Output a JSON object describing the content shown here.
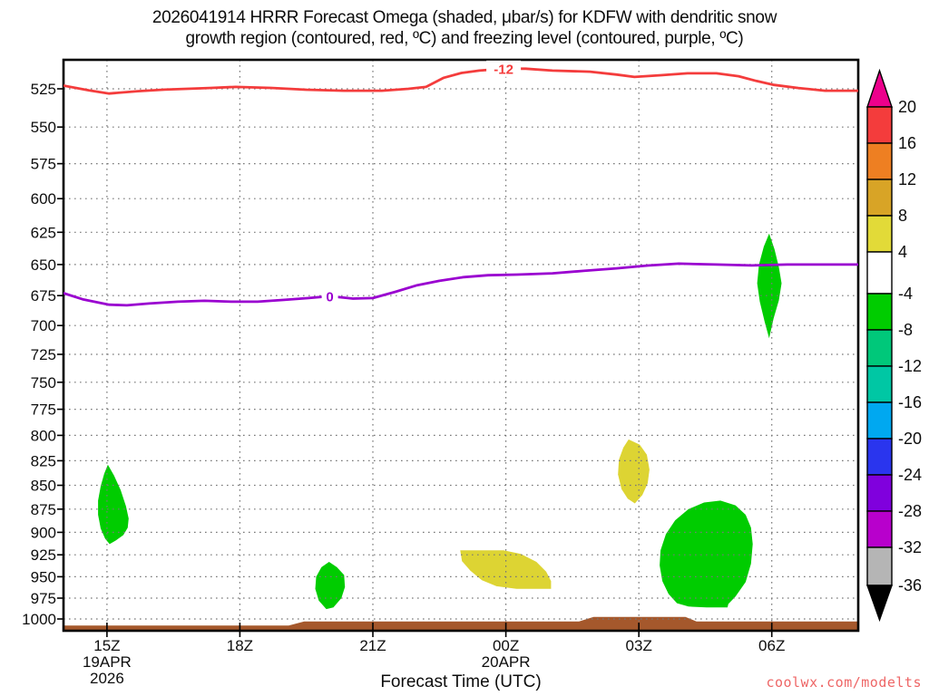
{
  "title": {
    "line1": "2026041914 HRRR Forecast Omega (shaded, μbar/s) for KDFW with dendritic snow",
    "line2": "growth region (contoured, red, ºC) and freezing level (contoured, purple, ºC)"
  },
  "xlabel": "Forecast Time (UTC)",
  "watermark": {
    "text": "coolwx.com/modelts",
    "color": "#ee6666"
  },
  "colors": {
    "green_shade": "#00cc00",
    "yellow_shade": "#ddd433",
    "terrain_brown": "#a5582c",
    "red_contour": "#f43c3c",
    "purple_contour": "#9a00d0",
    "gridline": "#777777",
    "axis": "#000000"
  },
  "chart_data": {
    "type": "filled_contour_time_height_cross_section",
    "model": "HRRR",
    "init": "2026041914",
    "station": "KDFW",
    "shaded_variable": "Omega (μbar/s)",
    "x_axis": {
      "label": "Forecast Time (UTC)",
      "range_hours": [
        14.02,
        31.95
      ],
      "ticks": [
        {
          "label": "15Z",
          "t": 15
        },
        {
          "label": "18Z",
          "t": 18
        },
        {
          "label": "21Z",
          "t": 21
        },
        {
          "label": "00Z",
          "t": 24
        },
        {
          "label": "03Z",
          "t": 27
        },
        {
          "label": "06Z",
          "t": 30
        }
      ],
      "sub_labels": [
        {
          "text": "19APR",
          "t": 15,
          "row": 1
        },
        {
          "text": "2026",
          "t": 15,
          "row": 2
        },
        {
          "text": "20APR",
          "t": 24,
          "row": 1
        }
      ]
    },
    "y_axis": {
      "unit": "hPa",
      "scale": "log",
      "range": [
        507,
        1015
      ],
      "ticks": [
        525,
        550,
        575,
        600,
        625,
        650,
        675,
        700,
        725,
        750,
        775,
        800,
        825,
        850,
        875,
        900,
        925,
        950,
        975,
        1000
      ]
    },
    "colorbar": {
      "over_color": "#ec008c",
      "under_color": "#000000",
      "levels": [
        20,
        16,
        12,
        8,
        4,
        -4,
        -8,
        -12,
        -16,
        -20,
        -24,
        -28,
        -32,
        -36
      ],
      "segment_colors": [
        "#f43c3c",
        "#ee7f22",
        "#d8a426",
        "#e2da38",
        "#ffffff",
        "#00cc00",
        "#00c87a",
        "#00c7a4",
        "#00a8f0",
        "#2a35ee",
        "#8000dd",
        "#b800cc",
        "#b5b5b5"
      ]
    },
    "contours": [
      {
        "name": "dendritic-snow-growth-minus12C",
        "label": "-12",
        "color": "#f43c3c",
        "label_t": 23.95,
        "label_p": 512.3,
        "points": [
          [
            14.02,
            523
          ],
          [
            14.6,
            526
          ],
          [
            15.05,
            528
          ],
          [
            15.7,
            526.5
          ],
          [
            16.3,
            525.5
          ],
          [
            17.3,
            524.5
          ],
          [
            17.9,
            523.8
          ],
          [
            18.7,
            524.4
          ],
          [
            19.5,
            525.6
          ],
          [
            20.35,
            526.2
          ],
          [
            21.2,
            526.2
          ],
          [
            21.8,
            525
          ],
          [
            22.2,
            523.8
          ],
          [
            22.6,
            518
          ],
          [
            23.0,
            515
          ],
          [
            23.4,
            513.5
          ],
          [
            23.95,
            512.3
          ],
          [
            24.45,
            512.3
          ],
          [
            25.05,
            513.5
          ],
          [
            25.9,
            514.2
          ],
          [
            26.5,
            516
          ],
          [
            26.9,
            517.5
          ],
          [
            27.5,
            516.4
          ],
          [
            28.1,
            515.2
          ],
          [
            28.75,
            515.2
          ],
          [
            29.25,
            517
          ],
          [
            29.65,
            520
          ],
          [
            30.05,
            522.5
          ],
          [
            30.6,
            524.5
          ],
          [
            31.2,
            526.2
          ],
          [
            31.95,
            526.2
          ]
        ]
      },
      {
        "name": "freezing-level-0C",
        "label": "0",
        "color": "#9a00d0",
        "label_t": 20.03,
        "label_p": 675.5,
        "points": [
          [
            14.02,
            673
          ],
          [
            14.45,
            678
          ],
          [
            15.05,
            682.5
          ],
          [
            15.45,
            683
          ],
          [
            15.95,
            681.5
          ],
          [
            16.6,
            680
          ],
          [
            17.2,
            679.3
          ],
          [
            17.8,
            680
          ],
          [
            18.4,
            680
          ],
          [
            19.0,
            678.5
          ],
          [
            19.55,
            677
          ],
          [
            20.03,
            675.5
          ],
          [
            20.55,
            677.5
          ],
          [
            21.0,
            677
          ],
          [
            21.5,
            672
          ],
          [
            22.0,
            666.5
          ],
          [
            22.5,
            663
          ],
          [
            23.05,
            660
          ],
          [
            23.6,
            658.5
          ],
          [
            24.25,
            658
          ],
          [
            25.05,
            657
          ],
          [
            25.75,
            655
          ],
          [
            26.5,
            653
          ],
          [
            27.2,
            650.8
          ],
          [
            27.9,
            649.3
          ],
          [
            28.75,
            650
          ],
          [
            29.55,
            650.7
          ],
          [
            30.35,
            650
          ],
          [
            31.2,
            650
          ],
          [
            31.95,
            650
          ]
        ]
      }
    ],
    "shaded_regions": [
      {
        "value_range": "-8 to -4 μbar/s",
        "color_key": "green_shade",
        "points": [
          [
            15.02,
            829
          ],
          [
            15.16,
            840
          ],
          [
            15.31,
            855
          ],
          [
            15.43,
            872
          ],
          [
            15.49,
            885
          ],
          [
            15.47,
            895
          ],
          [
            15.37,
            903
          ],
          [
            15.2,
            909
          ],
          [
            15.06,
            913
          ],
          [
            14.96,
            907
          ],
          [
            14.86,
            896
          ],
          [
            14.8,
            881
          ],
          [
            14.8,
            866
          ],
          [
            14.86,
            851
          ],
          [
            14.94,
            838
          ]
        ]
      },
      {
        "value_range": "-8 to -4 μbar/s",
        "color_key": "green_shade",
        "points": [
          [
            20.01,
            933
          ],
          [
            20.19,
            939
          ],
          [
            20.35,
            948
          ],
          [
            20.37,
            962
          ],
          [
            20.29,
            975
          ],
          [
            20.11,
            986
          ],
          [
            19.95,
            988
          ],
          [
            19.78,
            978
          ],
          [
            19.7,
            964
          ],
          [
            19.72,
            950
          ],
          [
            19.84,
            939
          ]
        ]
      },
      {
        "value_range": "4 to 8 μbar/s",
        "color_key": "yellow_shade",
        "points": [
          [
            22.97,
            920
          ],
          [
            23.95,
            920
          ],
          [
            24.34,
            924
          ],
          [
            24.69,
            933
          ],
          [
            24.91,
            944
          ],
          [
            25.02,
            955
          ],
          [
            25.02,
            964
          ],
          [
            24.24,
            964
          ],
          [
            23.79,
            961
          ],
          [
            23.46,
            954
          ],
          [
            23.2,
            943
          ],
          [
            23.01,
            932
          ]
        ]
      },
      {
        "value_range": "4 to 8 μbar/s",
        "color_key": "yellow_shade",
        "points": [
          [
            26.77,
            804
          ],
          [
            27.02,
            809
          ],
          [
            27.18,
            819
          ],
          [
            27.24,
            834
          ],
          [
            27.2,
            848
          ],
          [
            27.08,
            860
          ],
          [
            26.91,
            869
          ],
          [
            26.75,
            864
          ],
          [
            26.61,
            854
          ],
          [
            26.53,
            839
          ],
          [
            26.55,
            824
          ],
          [
            26.65,
            812
          ]
        ]
      },
      {
        "value_range": "-8 to -4 μbar/s",
        "color_key": "green_shade",
        "points": [
          [
            28.84,
            866
          ],
          [
            29.18,
            871
          ],
          [
            29.41,
            881
          ],
          [
            29.53,
            895
          ],
          [
            29.57,
            913
          ],
          [
            29.53,
            935
          ],
          [
            29.41,
            956
          ],
          [
            29.18,
            973
          ],
          [
            29.02,
            982
          ],
          [
            29.0,
            986
          ],
          [
            28.53,
            986
          ],
          [
            28.12,
            985
          ],
          [
            27.86,
            981
          ],
          [
            27.67,
            970
          ],
          [
            27.53,
            955
          ],
          [
            27.47,
            937
          ],
          [
            27.49,
            920
          ],
          [
            27.61,
            902
          ],
          [
            27.82,
            887
          ],
          [
            28.12,
            875
          ],
          [
            28.47,
            868
          ]
        ]
      },
      {
        "value_range": "-8 to -4 μbar/s",
        "color_key": "green_shade",
        "points": [
          [
            29.94,
            626
          ],
          [
            30.06,
            638
          ],
          [
            30.16,
            652
          ],
          [
            30.22,
            665
          ],
          [
            30.16,
            679
          ],
          [
            30.04,
            694
          ],
          [
            29.94,
            711
          ],
          [
            29.84,
            697
          ],
          [
            29.73,
            680
          ],
          [
            29.67,
            665
          ],
          [
            29.71,
            650
          ],
          [
            29.82,
            636
          ]
        ]
      }
    ],
    "terrain": {
      "color_key": "terrain_brown",
      "top_profile": [
        [
          14.02,
          1008
        ],
        [
          19.1,
          1008
        ],
        [
          19.45,
          1003
        ],
        [
          25.65,
          1003
        ],
        [
          25.98,
          997.5
        ],
        [
          28.05,
          997.5
        ],
        [
          28.3,
          1003
        ],
        [
          31.95,
          1003
        ]
      ],
      "bottom_p": 1016
    }
  }
}
